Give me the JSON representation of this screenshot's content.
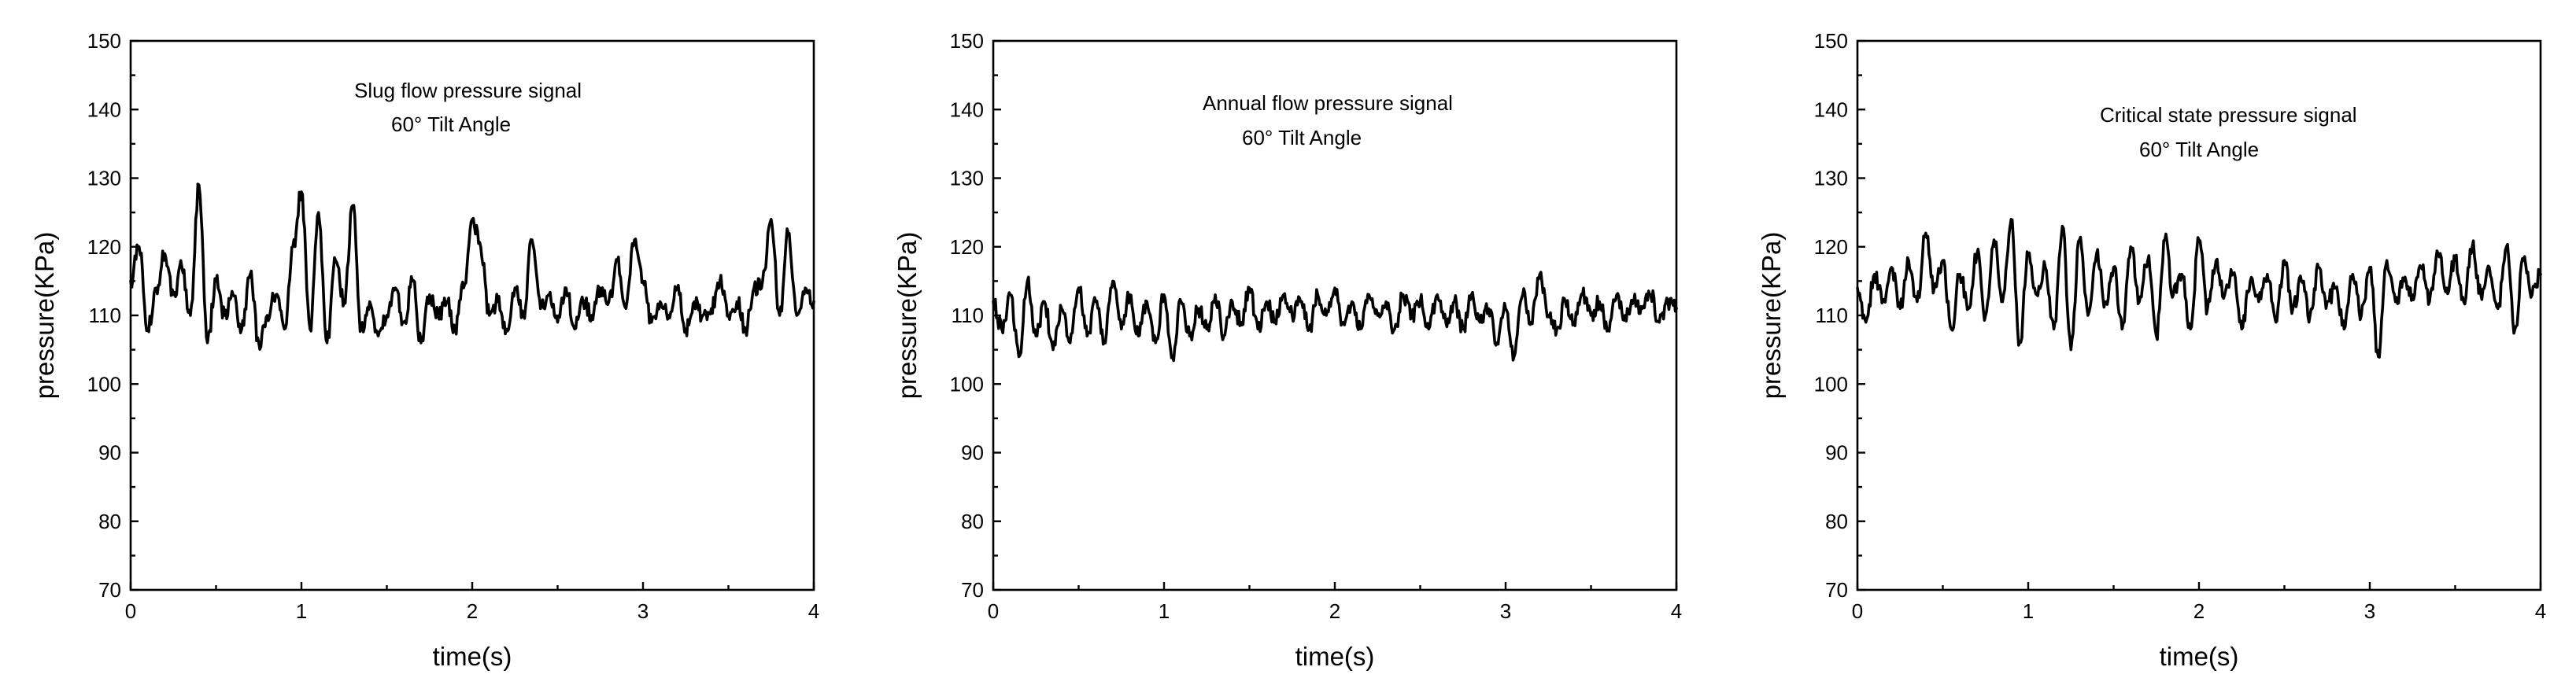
{
  "chart_data": [
    {
      "type": "line",
      "title": "",
      "xlabel": "time(s)",
      "ylabel": "pressure(KPa)",
      "xlim": [
        0,
        4
      ],
      "ylim": [
        70,
        150
      ],
      "xticks": [
        "0",
        "1",
        "2",
        "3",
        "4"
      ],
      "yticks": [
        "70",
        "80",
        "90",
        "100",
        "110",
        "120",
        "130",
        "140",
        "150"
      ],
      "annotation": [
        "Slug flow pressure signal",
        "60° Tilt Angle"
      ],
      "grid": false,
      "series": [
        {
          "name": "pressure",
          "x": [
            0.0,
            0.05,
            0.1,
            0.15,
            0.2,
            0.25,
            0.3,
            0.35,
            0.4,
            0.45,
            0.5,
            0.55,
            0.6,
            0.65,
            0.7,
            0.75,
            0.8,
            0.85,
            0.9,
            0.95,
            1.0,
            1.05,
            1.1,
            1.15,
            1.2,
            1.25,
            1.3,
            1.35,
            1.4,
            1.45,
            1.5,
            1.55,
            1.6,
            1.65,
            1.7,
            1.75,
            1.8,
            1.85,
            1.9,
            1.95,
            2.0,
            2.05,
            2.1,
            2.15,
            2.2,
            2.25,
            2.3,
            2.35,
            2.4,
            2.45,
            2.5,
            2.55,
            2.6,
            2.65,
            2.7,
            2.75,
            2.8,
            2.85,
            2.9,
            2.95,
            3.0,
            3.05,
            3.1,
            3.15,
            3.2,
            3.25,
            3.3,
            3.35,
            3.4,
            3.45,
            3.5,
            3.55,
            3.6,
            3.65,
            3.7,
            3.75,
            3.8,
            3.85,
            3.9,
            3.95,
            4.0
          ],
          "values": [
            115,
            120,
            108,
            114,
            119,
            113,
            117,
            110,
            129,
            106,
            115,
            110,
            113,
            108,
            116,
            106,
            110,
            113,
            108,
            120,
            128,
            108,
            125,
            106,
            118,
            112,
            126,
            108,
            112,
            107,
            110,
            114,
            109,
            115,
            106,
            113,
            110,
            112,
            108,
            114,
            124,
            120,
            110,
            112,
            108,
            114,
            110,
            121,
            111,
            113,
            109,
            114,
            108,
            112,
            110,
            114,
            112,
            118,
            111,
            121,
            115,
            109,
            112,
            110,
            114,
            108,
            112,
            110,
            111,
            115,
            110,
            112,
            108,
            114,
            115,
            124,
            110,
            122,
            110,
            114,
            112
          ]
        }
      ]
    },
    {
      "type": "line",
      "title": "",
      "xlabel": "time(s)",
      "ylabel": "pressure(KPa)",
      "xlim": [
        0,
        4
      ],
      "ylim": [
        70,
        150
      ],
      "xticks": [
        "0",
        "1",
        "2",
        "3",
        "4"
      ],
      "yticks": [
        "70",
        "80",
        "90",
        "100",
        "110",
        "120",
        "130",
        "140",
        "150"
      ],
      "annotation": [
        "Annual flow pressure signal",
        "60° Tilt Angle"
      ],
      "grid": false,
      "series": [
        {
          "name": "pressure",
          "x": [
            0.0,
            0.05,
            0.1,
            0.15,
            0.2,
            0.25,
            0.3,
            0.35,
            0.4,
            0.45,
            0.5,
            0.55,
            0.6,
            0.65,
            0.7,
            0.75,
            0.8,
            0.85,
            0.9,
            0.95,
            1.0,
            1.05,
            1.1,
            1.15,
            1.2,
            1.25,
            1.3,
            1.35,
            1.4,
            1.45,
            1.5,
            1.55,
            1.6,
            1.65,
            1.7,
            1.75,
            1.8,
            1.85,
            1.9,
            1.95,
            2.0,
            2.05,
            2.1,
            2.15,
            2.2,
            2.25,
            2.3,
            2.35,
            2.4,
            2.45,
            2.5,
            2.55,
            2.6,
            2.65,
            2.7,
            2.75,
            2.8,
            2.85,
            2.9,
            2.95,
            3.0,
            3.05,
            3.1,
            3.15,
            3.2,
            3.25,
            3.3,
            3.35,
            3.4,
            3.45,
            3.5,
            3.55,
            3.6,
            3.65,
            3.7,
            3.75,
            3.8,
            3.85,
            3.9,
            3.95,
            4.0
          ],
          "values": [
            112,
            108,
            113,
            104,
            115,
            107,
            112,
            105,
            111,
            106,
            114,
            107,
            112,
            106,
            115,
            108,
            113,
            107,
            112,
            106,
            113,
            104,
            112,
            107,
            111,
            108,
            113,
            107,
            112,
            109,
            114,
            108,
            112,
            109,
            113,
            110,
            112,
            108,
            113,
            110,
            114,
            109,
            112,
            108,
            113,
            110,
            112,
            108,
            113,
            110,
            112,
            108,
            113,
            109,
            112,
            108,
            113,
            109,
            111,
            106,
            111,
            104,
            113,
            109,
            116,
            110,
            108,
            112,
            109,
            113,
            110,
            112,
            108,
            113,
            110,
            112,
            111,
            113,
            109,
            112,
            111
          ]
        }
      ]
    },
    {
      "type": "line",
      "title": "",
      "xlabel": "time(s)",
      "ylabel": "pressure(KPa)",
      "xlim": [
        0,
        4
      ],
      "ylim": [
        70,
        150
      ],
      "xticks": [
        "0",
        "1",
        "2",
        "3",
        "4"
      ],
      "yticks": [
        "70",
        "80",
        "90",
        "100",
        "110",
        "120",
        "130",
        "140",
        "150"
      ],
      "annotation": [
        "Critical state pressure signal",
        "60° Tilt Angle"
      ],
      "grid": false,
      "series": [
        {
          "name": "pressure",
          "x": [
            0.0,
            0.05,
            0.1,
            0.15,
            0.2,
            0.25,
            0.3,
            0.35,
            0.4,
            0.45,
            0.5,
            0.55,
            0.6,
            0.65,
            0.7,
            0.75,
            0.8,
            0.85,
            0.9,
            0.95,
            1.0,
            1.05,
            1.1,
            1.15,
            1.2,
            1.25,
            1.3,
            1.35,
            1.4,
            1.45,
            1.5,
            1.55,
            1.6,
            1.65,
            1.7,
            1.75,
            1.8,
            1.85,
            1.9,
            1.95,
            2.0,
            2.05,
            2.1,
            2.15,
            2.2,
            2.25,
            2.3,
            2.35,
            2.4,
            2.45,
            2.5,
            2.55,
            2.6,
            2.65,
            2.7,
            2.75,
            2.8,
            2.85,
            2.9,
            2.95,
            3.0,
            3.05,
            3.1,
            3.15,
            3.2,
            3.25,
            3.3,
            3.35,
            3.4,
            3.45,
            3.5,
            3.55,
            3.6,
            3.65,
            3.7,
            3.75,
            3.8,
            3.85,
            3.9,
            3.95,
            4.0
          ],
          "values": [
            114,
            109,
            116,
            112,
            117,
            111,
            118,
            112,
            122,
            114,
            118,
            108,
            116,
            111,
            119,
            110,
            121,
            112,
            124,
            106,
            119,
            113,
            117,
            108,
            123,
            105,
            121,
            110,
            119,
            112,
            117,
            108,
            120,
            112,
            118,
            107,
            121,
            113,
            116,
            108,
            121,
            111,
            118,
            113,
            116,
            108,
            115,
            112,
            116,
            109,
            118,
            111,
            115,
            110,
            117,
            112,
            114,
            108,
            116,
            110,
            117,
            104,
            118,
            112,
            115,
            113,
            117,
            112,
            119,
            114,
            118,
            112,
            120,
            113,
            117,
            111,
            120,
            108,
            118,
            113,
            116
          ]
        }
      ]
    }
  ]
}
